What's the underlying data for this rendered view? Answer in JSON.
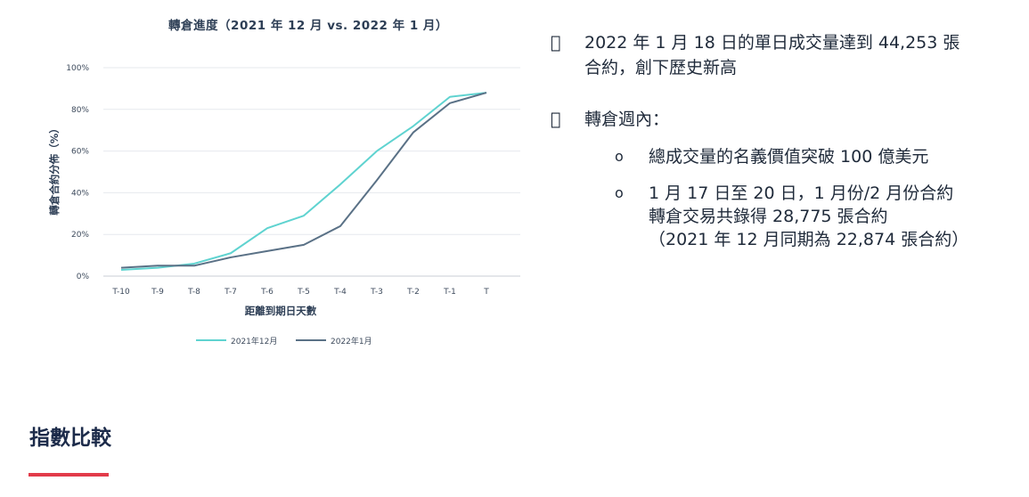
{
  "chart_data": {
    "type": "line",
    "title": "轉倉進度（2021 年 12 月 vs. 2022 年 1 月）",
    "xlabel": "距離到期日天數",
    "ylabel": "轉倉合約分佈（%）",
    "categories": [
      "T-10",
      "T-9",
      "T-8",
      "T-7",
      "T-6",
      "T-5",
      "T-4",
      "T-3",
      "T-2",
      "T-1",
      "T"
    ],
    "yticks": [
      "0%",
      "20%",
      "40%",
      "60%",
      "80%",
      "100%"
    ],
    "ylim": [
      0,
      100
    ],
    "grid": "horizontal",
    "legend": "bottom",
    "series": [
      {
        "name": "2021年12月",
        "color": "#5fd3d0",
        "values": [
          3,
          4,
          6,
          11,
          23,
          29,
          44,
          60,
          72,
          86,
          88
        ]
      },
      {
        "name": "2022年1月",
        "color": "#5a7186",
        "values": [
          4,
          5,
          5,
          9,
          12,
          15,
          24,
          46,
          69,
          83,
          88
        ]
      }
    ]
  },
  "bullets": {
    "mark": "",
    "item1_line1": "2022 年 1 月 18 日的單日成交量達到 44,253 張",
    "item1_line2": "合約，創下歷史新高",
    "item2_label": "轉倉週內：",
    "sub_mark": "o",
    "sub1": "總成交量的名義價值突破 100 億美元",
    "sub2_line1": "1 月 17 日至 20 日，1 月份/2 月份合約",
    "sub2_line2": "轉倉交易共錄得 28,775 張合約",
    "sub2_line3": "（2021 年 12 月同期為 22,874 張合約）"
  },
  "section": {
    "heading": "指數比較",
    "accent_color": "#e23b4a"
  }
}
